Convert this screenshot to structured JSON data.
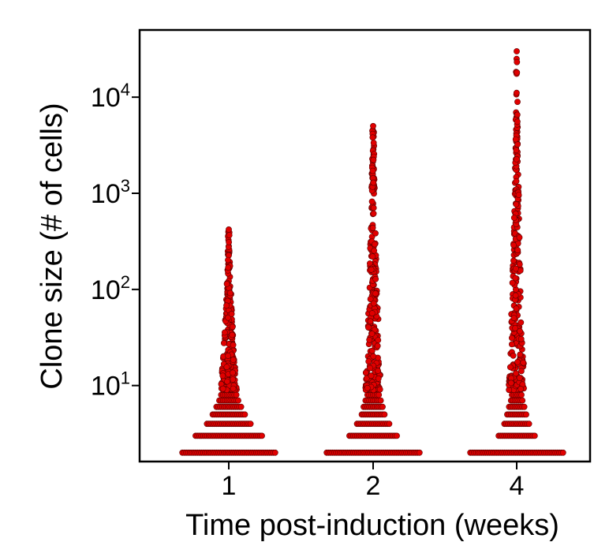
{
  "chart_data": {
    "type": "scatter",
    "xlabel": "Time post-induction (weeks)",
    "ylabel": "Clone size (# of cells)",
    "y_scale": "log",
    "ylim": [
      1.62,
      50000
    ],
    "categories": [
      "1",
      "2",
      "4"
    ],
    "y_ticks": [
      {
        "value": 10,
        "base": "10",
        "exp": "1"
      },
      {
        "value": 100,
        "base": "10",
        "exp": "2"
      },
      {
        "value": 1000,
        "base": "10",
        "exp": "3"
      },
      {
        "value": 10000,
        "base": "10",
        "exp": "4"
      }
    ],
    "marker_color": "#e00000",
    "marker_edge_color": "#5a0000",
    "series": [
      {
        "x": "1",
        "size_counts": [
          {
            "size": 2,
            "count": 50
          },
          {
            "size": 3,
            "count": 36
          },
          {
            "size": 4,
            "count": 24
          },
          {
            "size": 5,
            "count": 18
          },
          {
            "size": 6,
            "count": 14
          },
          {
            "size": 7,
            "count": 11
          },
          {
            "size": 8,
            "count": 9
          }
        ],
        "tail_min": 9,
        "tail_max": 290,
        "max_value": 420
      },
      {
        "x": "2",
        "size_counts": [
          {
            "size": 2,
            "count": 50
          },
          {
            "size": 3,
            "count": 26
          },
          {
            "size": 4,
            "count": 18
          },
          {
            "size": 5,
            "count": 13
          },
          {
            "size": 6,
            "count": 11
          },
          {
            "size": 7,
            "count": 9
          },
          {
            "size": 8,
            "count": 7
          }
        ],
        "tail_min": 9,
        "tail_max": 3500,
        "max_value": 5000
      },
      {
        "x": "4",
        "size_counts": [
          {
            "size": 2,
            "count": 50
          },
          {
            "size": 3,
            "count": 20
          },
          {
            "size": 4,
            "count": 14
          },
          {
            "size": 5,
            "count": 11
          },
          {
            "size": 6,
            "count": 9
          },
          {
            "size": 7,
            "count": 7
          },
          {
            "size": 8,
            "count": 6
          }
        ],
        "tail_min": 9,
        "tail_max": 7000,
        "max_value": 30000
      }
    ]
  }
}
